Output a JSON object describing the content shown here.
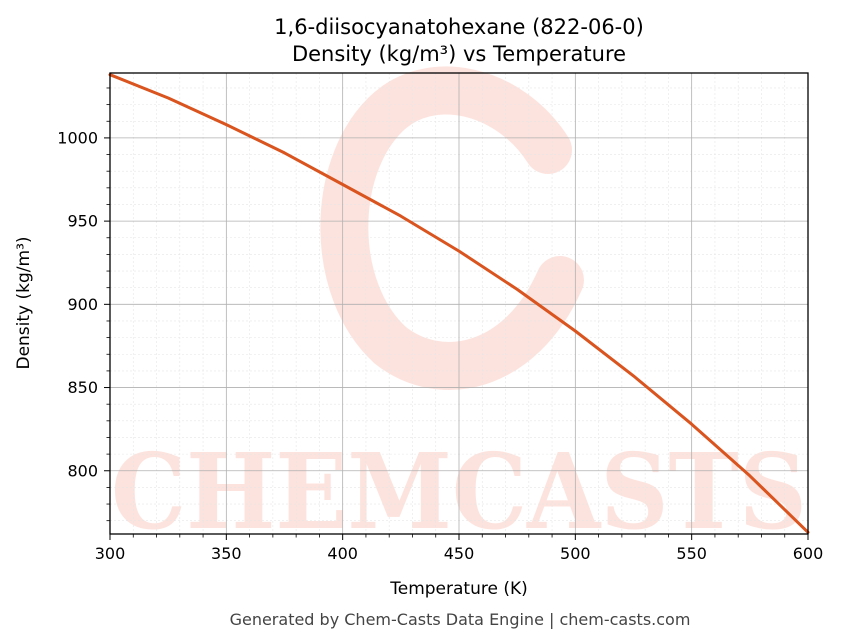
{
  "chart_data": {
    "type": "line",
    "title_line1": "1,6-diisocyanatohexane (822-06-0)",
    "title_line2": "Density (kg/m³) vs Temperature",
    "xlabel": "Temperature (K)",
    "ylabel": "Density (kg/m³)",
    "xlim": [
      300,
      600
    ],
    "ylim": [
      762,
      1039
    ],
    "x_ticks": [
      300,
      350,
      400,
      450,
      500,
      550,
      600
    ],
    "y_ticks": [
      800,
      850,
      900,
      950,
      1000
    ],
    "grid": true,
    "series": [
      {
        "color": "#d9541e",
        "x": [
          300,
          325,
          350,
          375,
          400,
          425,
          450,
          475,
          500,
          525,
          550,
          575,
          600
        ],
        "y": [
          1038,
          1024,
          1008,
          991,
          972,
          953,
          932,
          909,
          884,
          857,
          828,
          797,
          763
        ]
      }
    ]
  },
  "watermark": {
    "text": "CHEMCASTS"
  },
  "footer": {
    "text": "Generated by Chem-Casts Data Engine | chem-casts.com"
  }
}
